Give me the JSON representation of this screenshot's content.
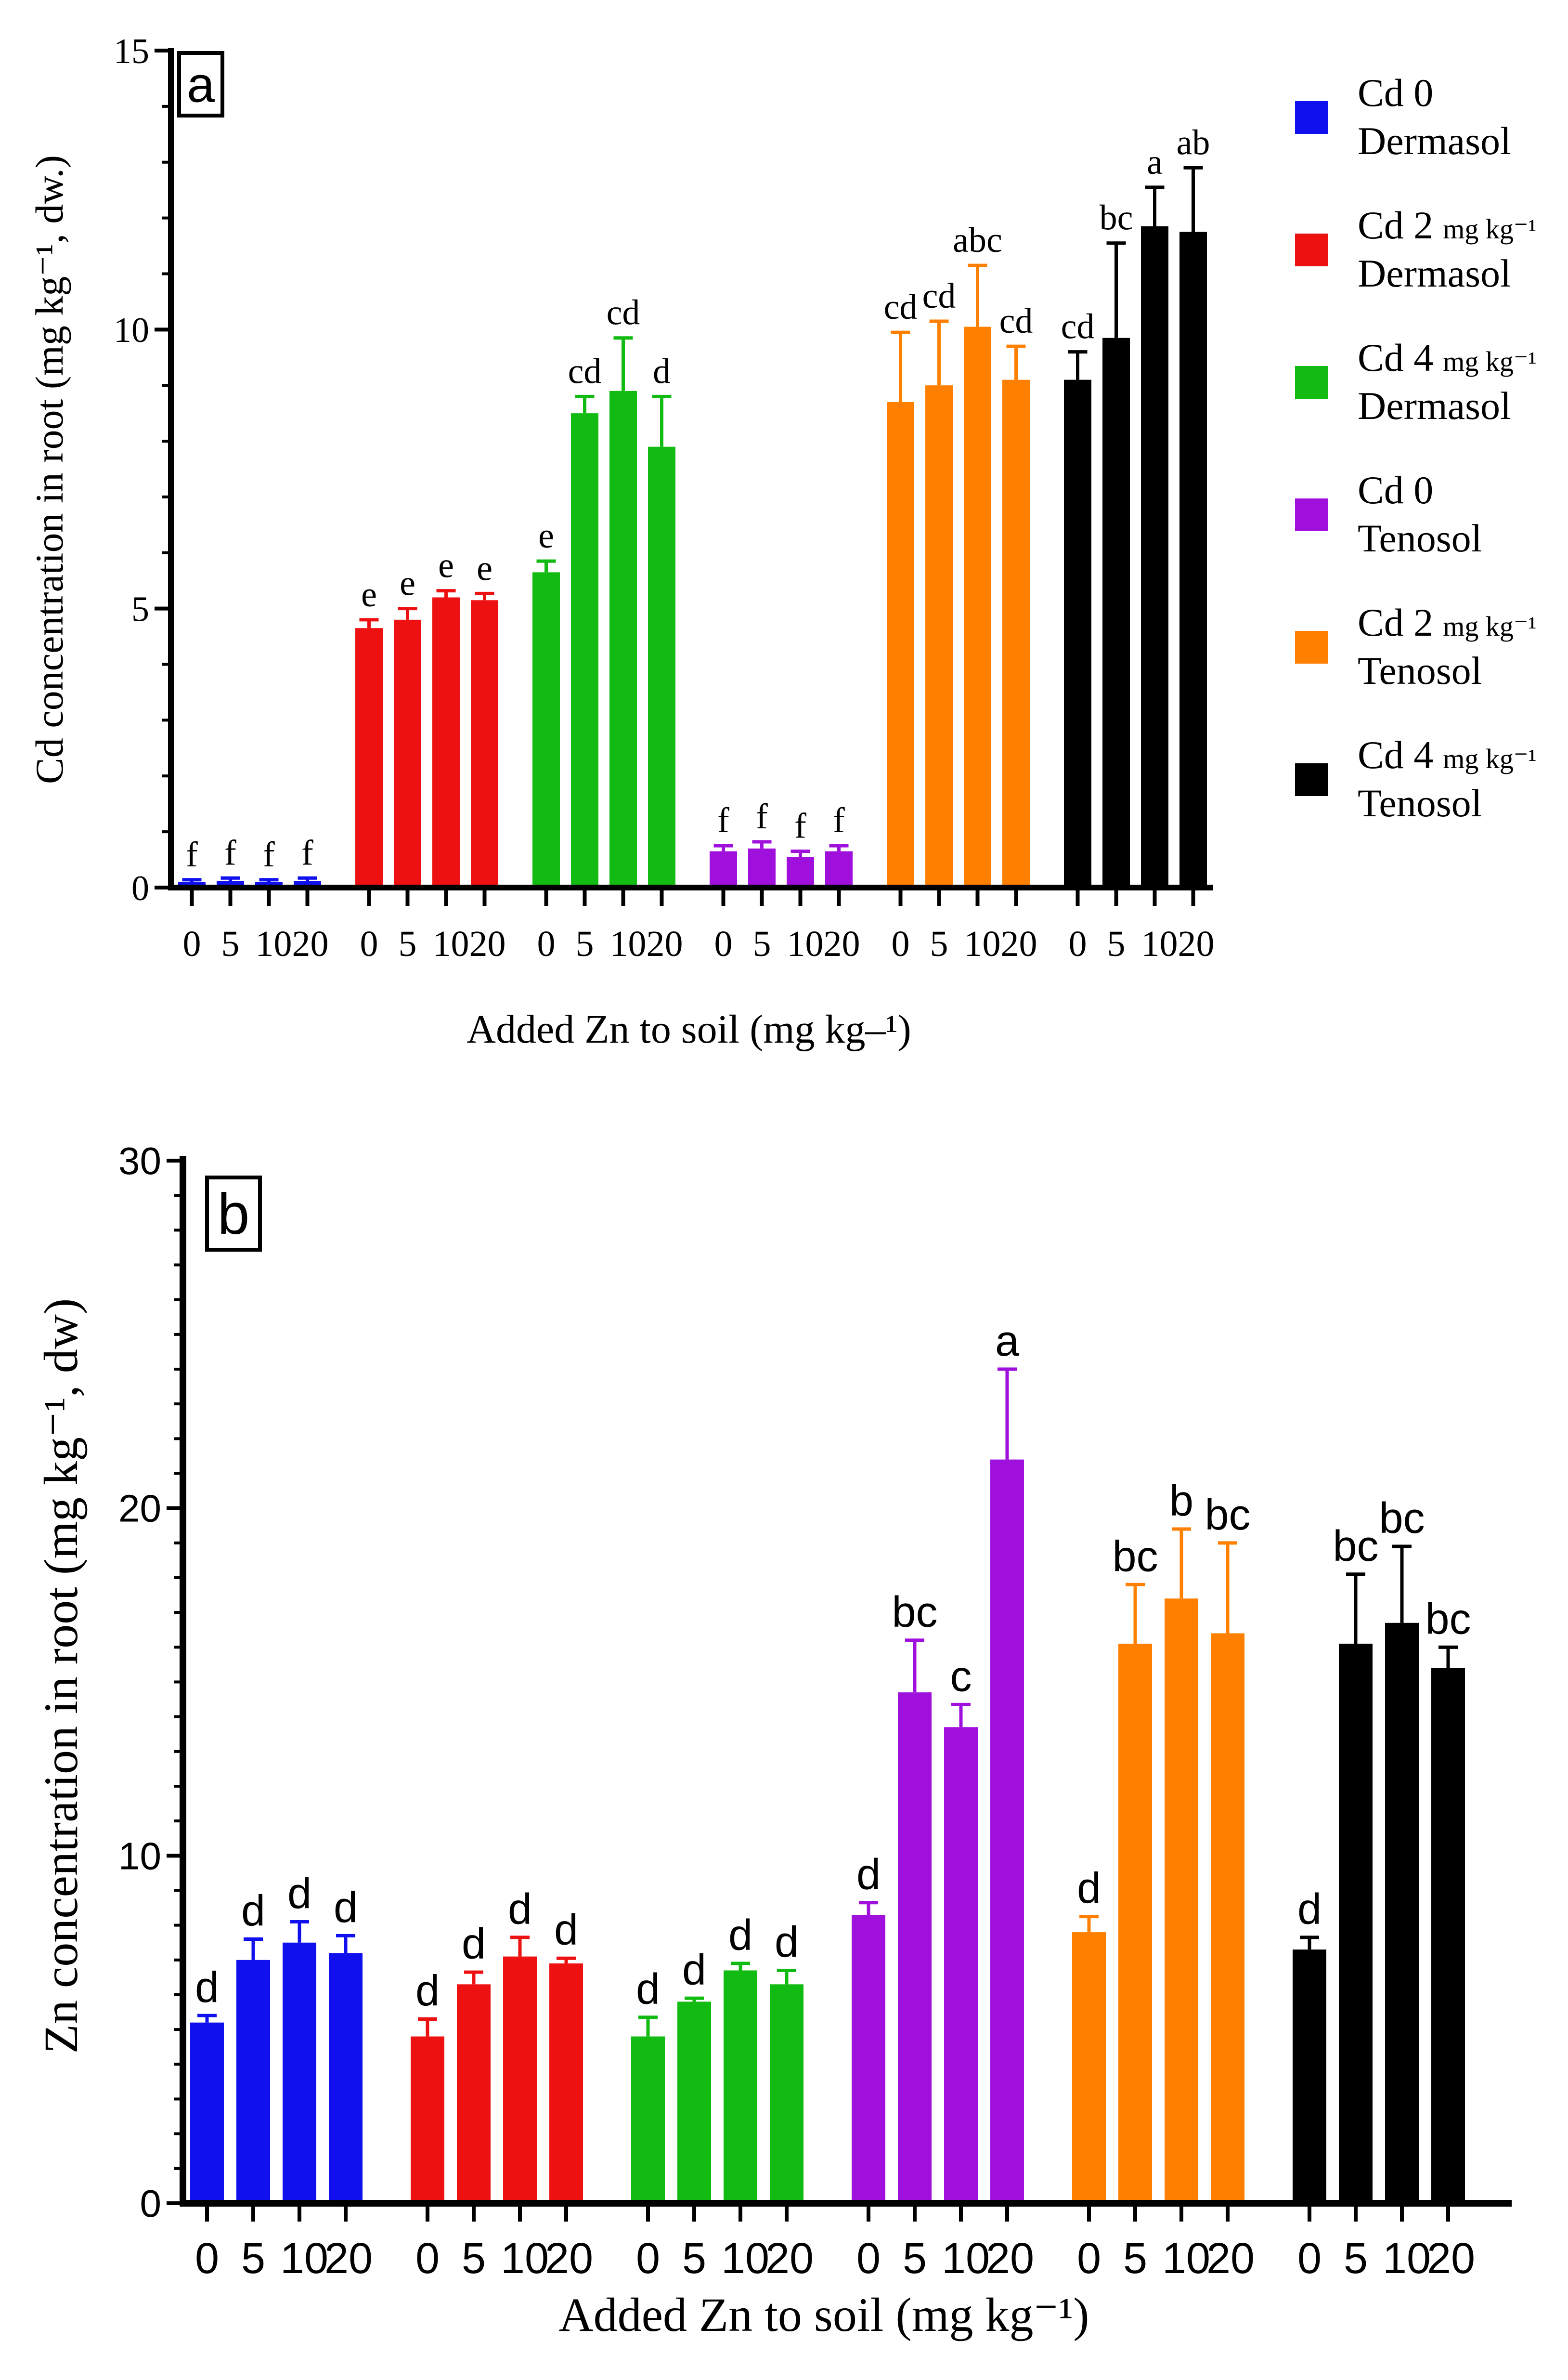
{
  "chart_data": [
    {
      "type": "bar",
      "panel": "a",
      "panel_label": "a",
      "ylabel": "Cd concentration in root (mg kg⁻¹, dw.)",
      "xlabel": "Added Zn to soil (mg kg–¹)",
      "ylim": [
        0,
        15
      ],
      "ytick_labels": [
        "0",
        "5",
        "10",
        "15"
      ],
      "categories": [
        "0",
        "5",
        "10",
        "20"
      ],
      "series": [
        {
          "name": "Cd 0 Dermasol",
          "color": "#1010ee",
          "values": [
            0.1,
            0.12,
            0.1,
            0.12
          ],
          "errors": [
            0.04,
            0.05,
            0.04,
            0.05
          ],
          "letters": [
            "f",
            "f",
            "f",
            "f"
          ]
        },
        {
          "name": "Cd 2 mg kg-1 Dermasol",
          "color": "#ee1111",
          "values": [
            4.65,
            4.8,
            5.2,
            5.15
          ],
          "errors": [
            0.15,
            0.2,
            0.12,
            0.12
          ],
          "letters": [
            "e",
            "e",
            "e",
            "e"
          ]
        },
        {
          "name": "Cd 4 mg kg-1 Dermasol",
          "color": "#11bb11",
          "values": [
            5.65,
            8.5,
            8.9,
            7.9
          ],
          "errors": [
            0.2,
            0.3,
            0.95,
            0.9
          ],
          "letters": [
            "e",
            "cd",
            "cd",
            "d"
          ]
        },
        {
          "name": "Cd 0 Tenosol",
          "color": "#a010dd",
          "values": [
            0.65,
            0.7,
            0.55,
            0.65
          ],
          "errors": [
            0.1,
            0.12,
            0.1,
            0.1
          ],
          "letters": [
            "f",
            "f",
            "f",
            "f"
          ]
        },
        {
          "name": "Cd 2 mg kg-1 Tenosol",
          "color": "#ff8000",
          "values": [
            8.7,
            9.0,
            10.05,
            9.1
          ],
          "errors": [
            1.25,
            1.15,
            1.1,
            0.6
          ],
          "letters": [
            "cd",
            "cd",
            "abc",
            "cd"
          ]
        },
        {
          "name": "Cd 4 mg kg-1 Tenosol",
          "color": "#000000",
          "values": [
            9.1,
            9.85,
            11.85,
            11.75
          ],
          "errors": [
            0.5,
            1.7,
            0.7,
            1.15
          ],
          "letters": [
            "cd",
            "bc",
            "a",
            "ab"
          ]
        }
      ]
    },
    {
      "type": "bar",
      "panel": "b",
      "panel_label": "b",
      "ylabel": "Zn concentration in root (mg kg⁻¹, dw)",
      "xlabel": "Added Zn to soil (mg kg⁻¹)",
      "ylim": [
        0,
        30
      ],
      "ytick_labels": [
        "0",
        "10",
        "20",
        "30"
      ],
      "categories": [
        "0",
        "5",
        "10",
        "20"
      ],
      "series": [
        {
          "name": "Cd 0 Dermasol",
          "color": "#1010ee",
          "values": [
            5.2,
            7.0,
            7.5,
            7.2
          ],
          "errors": [
            0.2,
            0.6,
            0.6,
            0.5
          ],
          "letters": [
            "d",
            "d",
            "d",
            "d"
          ]
        },
        {
          "name": "Cd 2 mg kg-1 Dermasol",
          "color": "#ee1111",
          "values": [
            4.8,
            6.3,
            7.1,
            6.9
          ],
          "errors": [
            0.5,
            0.35,
            0.55,
            0.15
          ],
          "letters": [
            "d",
            "d",
            "d",
            "d"
          ]
        },
        {
          "name": "Cd 4 mg kg-1 Dermasol",
          "color": "#11bb11",
          "values": [
            4.8,
            5.8,
            6.7,
            6.3
          ],
          "errors": [
            0.55,
            0.1,
            0.2,
            0.4
          ],
          "letters": [
            "d",
            "d",
            "d",
            "d"
          ]
        },
        {
          "name": "Cd 0 Tenosol",
          "color": "#a010dd",
          "values": [
            8.3,
            14.7,
            13.7,
            21.4
          ],
          "errors": [
            0.35,
            1.5,
            0.65,
            2.6
          ],
          "letters": [
            "d",
            "bc",
            "c",
            "a"
          ]
        },
        {
          "name": "Cd 2 mg kg-1 Tenosol",
          "color": "#ff8000",
          "values": [
            7.8,
            16.1,
            17.4,
            16.4
          ],
          "errors": [
            0.45,
            1.7,
            2.0,
            2.6
          ],
          "letters": [
            "d",
            "bc",
            "b",
            "bc"
          ]
        },
        {
          "name": "Cd 4 mg kg-1 Tenosol",
          "color": "#000000",
          "values": [
            7.3,
            16.1,
            16.7,
            15.4
          ],
          "errors": [
            0.35,
            2.0,
            2.2,
            0.6
          ],
          "letters": [
            "d",
            "bc",
            "bc",
            "bc"
          ]
        }
      ]
    }
  ],
  "legend": {
    "placement": "right of panel a",
    "entries": [
      {
        "color": "#1010ee",
        "line1": "Cd 0",
        "line1_unit": "",
        "line2": "Dermasol"
      },
      {
        "color": "#ee1111",
        "line1": "Cd 2",
        "line1_unit": "mg kg⁻¹",
        "line2": "Dermasol"
      },
      {
        "color": "#11bb11",
        "line1": "Cd 4",
        "line1_unit": "mg kg⁻¹",
        "line2": "Dermasol"
      },
      {
        "color": "#a010dd",
        "line1": "Cd 0",
        "line1_unit": "",
        "line2": "Tenosol"
      },
      {
        "color": "#ff8000",
        "line1": "Cd 2",
        "line1_unit": "mg kg⁻¹",
        "line2": "Tenosol"
      },
      {
        "color": "#000000",
        "line1": "Cd 4",
        "line1_unit": "mg kg⁻¹",
        "line2": "Tenosol"
      }
    ]
  }
}
